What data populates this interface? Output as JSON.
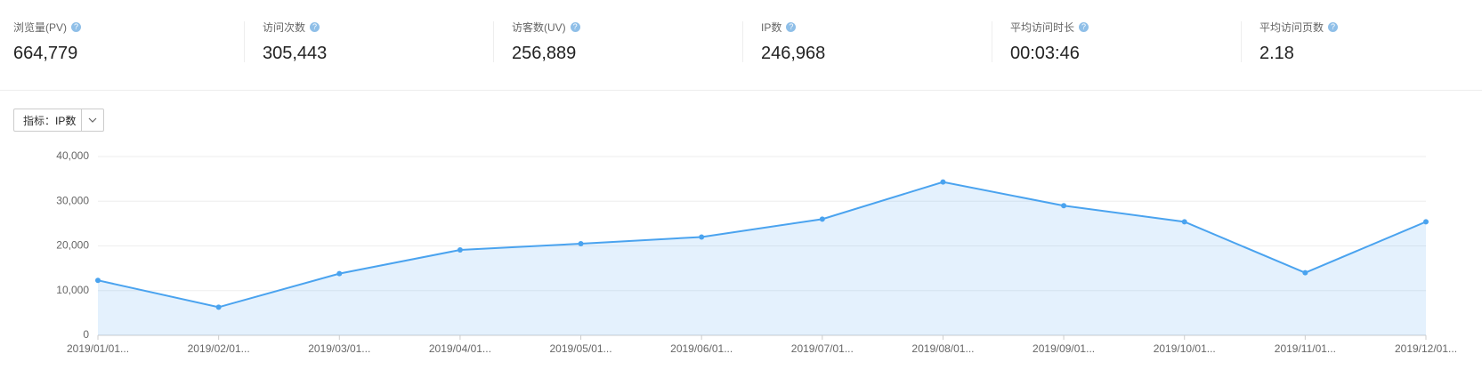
{
  "stats": [
    {
      "label": "浏览量(PV)",
      "value": "664,779"
    },
    {
      "label": "访问次数",
      "value": "305,443"
    },
    {
      "label": "访客数(UV)",
      "value": "256,889"
    },
    {
      "label": "IP数",
      "value": "246,968"
    },
    {
      "label": "平均访问时长",
      "value": "00:03:46"
    },
    {
      "label": "平均访问页数",
      "value": "2.18"
    }
  ],
  "selector": {
    "label": "指标：",
    "value": "IP数"
  },
  "chart_data": {
    "type": "area",
    "categories": [
      "2019/01/01...",
      "2019/02/01...",
      "2019/03/01...",
      "2019/04/01...",
      "2019/05/01...",
      "2019/06/01...",
      "2019/07/01...",
      "2019/08/01...",
      "2019/09/01...",
      "2019/10/01...",
      "2019/11/01...",
      "2019/12/01..."
    ],
    "values": [
      12300,
      6300,
      13800,
      19100,
      20500,
      22000,
      26000,
      34300,
      29000,
      25400,
      14000,
      25400
    ],
    "color": "#4aa3ef",
    "ylim": [
      0,
      40000
    ],
    "yticks": [
      0,
      {
        "value": 10000,
        "label": "10,000"
      },
      {
        "value": 20000,
        "label": "20,000"
      },
      {
        "value": 30000,
        "label": "30,000"
      },
      {
        "value": 40000,
        "label": "40,000"
      }
    ],
    "grid": true
  }
}
